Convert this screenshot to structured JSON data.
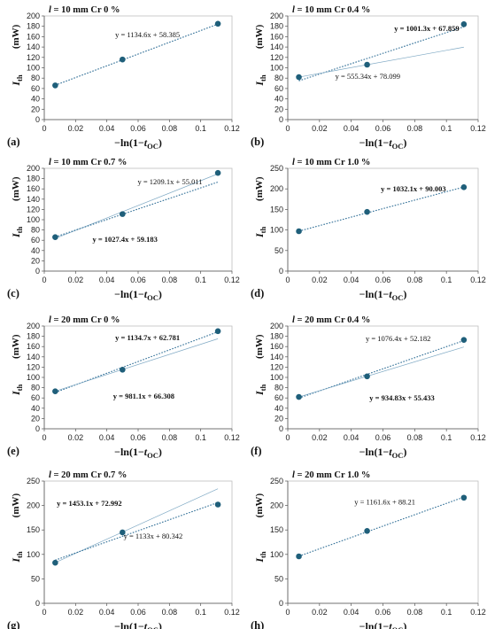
{
  "figure": {
    "xlabel_prefix": "−ln(1−",
    "xlabel_var": "t",
    "xlabel_sub": "OC",
    "xlabel_suffix": ")",
    "ylabel_main": "I",
    "ylabel_sub": "th",
    "ylabel_unit": "(mW)",
    "colors": {
      "marker": "#1f5f7a",
      "fit": "#2f6e96",
      "fit_light": "#7fa9c4",
      "frame": "#bfbfbf"
    }
  },
  "chart_data": [
    {
      "type": "scatter",
      "panel_label": "(a)",
      "title": "l = 10 mm   Cr  0 %",
      "xlim": [
        0,
        0.12
      ],
      "xticks": [
        "0",
        "0.02",
        "0.04",
        "0.06",
        "0.08",
        "0.1",
        "0.12"
      ],
      "ylim": [
        0,
        200
      ],
      "yticks": [
        "0",
        "20",
        "40",
        "60",
        "80",
        "100",
        "120",
        "140",
        "160",
        "180",
        "200"
      ],
      "x": [
        0.007,
        0.05,
        0.111
      ],
      "y": [
        66,
        116,
        185
      ],
      "fits": [
        {
          "equation": "y = 1134.6x + 58.385",
          "slope": 1134.6,
          "intercept": 58.385,
          "bold": false,
          "style": "dotted"
        }
      ]
    },
    {
      "type": "scatter",
      "panel_label": "(b)",
      "title": "l = 10 mm   Cr  0.4 %",
      "xlim": [
        0,
        0.12
      ],
      "xticks": [
        "0",
        "0.02",
        "0.04",
        "0.06",
        "0.08",
        "0.1",
        "0.12"
      ],
      "ylim": [
        0,
        200
      ],
      "yticks": [
        "0",
        "20",
        "40",
        "60",
        "80",
        "100",
        "120",
        "140",
        "160",
        "180",
        "200"
      ],
      "x": [
        0.007,
        0.05,
        0.111
      ],
      "y": [
        82,
        106,
        184
      ],
      "fits": [
        {
          "equation": "y = 1001.3x + 67.859",
          "slope": 1001.3,
          "intercept": 67.859,
          "bold": true,
          "style": "dotted"
        },
        {
          "equation": "y = 555.34x + 78.099",
          "slope": 555.34,
          "intercept": 78.099,
          "bold": false,
          "style": "thin"
        }
      ]
    },
    {
      "type": "scatter",
      "panel_label": "(c)",
      "title": "l = 10 mm   Cr  0.7 %",
      "xlim": [
        0,
        0.12
      ],
      "xticks": [
        "0",
        "0.02",
        "0.04",
        "0.06",
        "0.08",
        "0.1",
        "0.12"
      ],
      "ylim": [
        0,
        200
      ],
      "yticks": [
        "0",
        "20",
        "40",
        "60",
        "80",
        "100",
        "120",
        "140",
        "160",
        "180",
        "200"
      ],
      "x": [
        0.007,
        0.05,
        0.111
      ],
      "y": [
        66,
        111,
        191
      ],
      "fits": [
        {
          "equation": "y = 1209.1x + 55.011",
          "slope": 1209.1,
          "intercept": 55.011,
          "bold": false,
          "style": "thin"
        },
        {
          "equation": "y = 1027.4x + 59.183",
          "slope": 1027.4,
          "intercept": 59.183,
          "bold": true,
          "style": "dotted"
        }
      ]
    },
    {
      "type": "scatter",
      "panel_label": "(d)",
      "title": "l = 10 mm   Cr  1.0 %",
      "xlim": [
        0,
        0.12
      ],
      "xticks": [
        "0",
        "0.02",
        "0.04",
        "0.06",
        "0.08",
        "0.1",
        "0.12"
      ],
      "ylim": [
        0,
        250
      ],
      "yticks": [
        "0",
        "50",
        "100",
        "150",
        "200",
        "250"
      ],
      "x": [
        0.007,
        0.05,
        0.111
      ],
      "y": [
        97,
        144,
        204
      ],
      "fits": [
        {
          "equation": "y = 1032.1x + 90.003",
          "slope": 1032.1,
          "intercept": 90.003,
          "bold": true,
          "style": "dotted"
        }
      ]
    },
    {
      "type": "scatter",
      "panel_label": "(e)",
      "title": "l = 20 mm   Cr  0 %",
      "xlim": [
        0,
        0.12
      ],
      "xticks": [
        "0",
        "0.02",
        "0.04",
        "0.06",
        "0.08",
        "0.1",
        "0.12"
      ],
      "ylim": [
        0,
        200
      ],
      "yticks": [
        "0",
        "20",
        "40",
        "60",
        "80",
        "100",
        "120",
        "140",
        "160",
        "180",
        "200"
      ],
      "x": [
        0.007,
        0.05,
        0.111
      ],
      "y": [
        73,
        115,
        190
      ],
      "fits": [
        {
          "equation": "y = 1134.7x + 62.781",
          "slope": 1134.7,
          "intercept": 62.781,
          "bold": true,
          "style": "dotted"
        },
        {
          "equation": "y = 981.1x + 66.308",
          "slope": 981.1,
          "intercept": 66.308,
          "bold": true,
          "style": "thin"
        }
      ]
    },
    {
      "type": "scatter",
      "panel_label": "(f)",
      "title": "l = 20 mm   Cr  0.4 %",
      "xlim": [
        0,
        0.12
      ],
      "xticks": [
        "0",
        "0.02",
        "0.04",
        "0.06",
        "0.08",
        "0.1",
        "0.12"
      ],
      "ylim": [
        0,
        200
      ],
      "yticks": [
        "0",
        "20",
        "40",
        "60",
        "80",
        "100",
        "120",
        "140",
        "160",
        "180",
        "200"
      ],
      "x": [
        0.007,
        0.05,
        0.111
      ],
      "y": [
        62,
        102,
        173
      ],
      "fits": [
        {
          "equation": "y = 1076.4x + 52.182",
          "slope": 1076.4,
          "intercept": 52.182,
          "bold": false,
          "style": "dotted"
        },
        {
          "equation": "y = 934.83x + 55.433",
          "slope": 934.83,
          "intercept": 55.433,
          "bold": true,
          "style": "thin"
        }
      ]
    },
    {
      "type": "scatter",
      "panel_label": "(g)",
      "title": "l = 20 mm   Cr  0.7 %",
      "xlim": [
        0,
        0.12
      ],
      "xticks": [
        "0",
        "0.02",
        "0.04",
        "0.06",
        "0.08",
        "0.1",
        "0.12"
      ],
      "ylim": [
        0,
        250
      ],
      "yticks": [
        "0",
        "50",
        "100",
        "150",
        "200",
        "250"
      ],
      "x": [
        0.007,
        0.05,
        0.111
      ],
      "y": [
        83,
        145,
        202
      ],
      "fits": [
        {
          "equation": "y = 1453.1x + 72.992",
          "slope": 1453.1,
          "intercept": 72.992,
          "bold": true,
          "style": "thin"
        },
        {
          "equation": "y = 1133x + 80.342",
          "slope": 1133,
          "intercept": 80.342,
          "bold": false,
          "style": "dotted"
        }
      ]
    },
    {
      "type": "scatter",
      "panel_label": "(h)",
      "title": "l = 20 mm   Cr  1.0 %",
      "xlim": [
        0,
        0.12
      ],
      "xticks": [
        "0",
        "0.02",
        "0.04",
        "0.06",
        "0.08",
        "0.1",
        "0.12"
      ],
      "ylim": [
        0,
        250
      ],
      "yticks": [
        "0",
        "50",
        "100",
        "150",
        "200",
        "250"
      ],
      "x": [
        0.007,
        0.05,
        0.111
      ],
      "y": [
        96,
        148,
        216
      ],
      "fits": [
        {
          "equation": "y = 1161.6x + 88.21",
          "slope": 1161.6,
          "intercept": 88.21,
          "bold": false,
          "style": "dotted"
        }
      ]
    }
  ]
}
